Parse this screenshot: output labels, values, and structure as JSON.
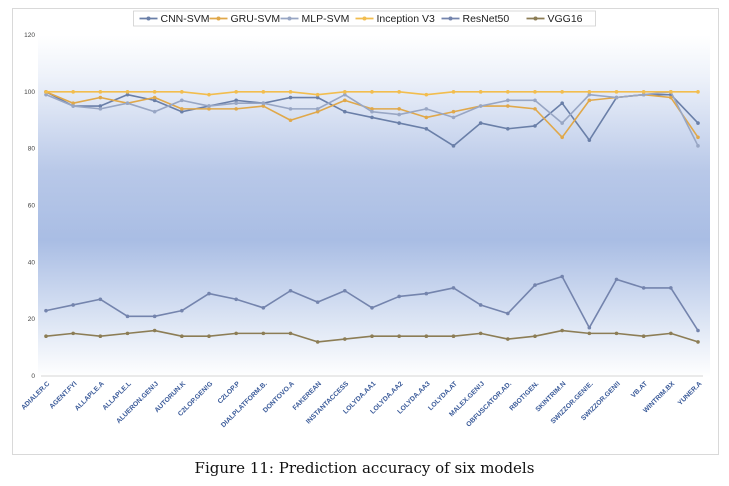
{
  "caption": "Figure 11: Prediction accuracy of six models",
  "chart_data": {
    "type": "line",
    "title": "",
    "xlabel": "",
    "ylabel": "",
    "ylim": [
      0,
      120
    ],
    "yticks": [
      0,
      20,
      40,
      60,
      80,
      100,
      120
    ],
    "grid": false,
    "legend_position": "top",
    "categories": [
      "ADIALER.C",
      "AGENT.FYI",
      "ALLAPLE.A",
      "ALLAPLE.L",
      "ALUERON.GEN!J",
      "AUTORUN.K",
      "C2LOP.GEN!G",
      "C2LOP.P",
      "DIALPLATFORM.B.",
      "DONTOVO.A",
      "FAKEREAN",
      "INSTANTACCESS",
      "LOLYDA.AA1",
      "LOLYDA.AA2",
      "LOLYDA.AA3",
      "LOLYDA.AT",
      "MALEX.GEN!J",
      "OBFUSCATOR.AD.",
      "RBOT!GEN.",
      "SKINTRIM.N",
      "SWIZZOR.GEN!E.",
      "SWIZZOR.GEN!I",
      "VB.AT",
      "WINTRIM.BX",
      "YUNER.A"
    ],
    "series": [
      {
        "name": "CNN-SVM",
        "color": "#6a7fa8",
        "values": [
          100,
          95,
          95,
          99,
          97,
          93,
          95,
          97,
          96,
          98,
          98,
          93,
          91,
          89,
          87,
          81,
          89,
          87,
          88,
          96,
          83,
          98,
          99,
          99,
          89
        ]
      },
      {
        "name": "GRU-SVM",
        "color": "#e0a84a",
        "values": [
          100,
          96,
          98,
          96,
          98,
          94,
          94,
          94,
          95,
          90,
          93,
          97,
          94,
          94,
          91,
          93,
          95,
          95,
          94,
          84,
          97,
          98,
          99,
          98,
          84
        ]
      },
      {
        "name": "MLP-SVM",
        "color": "#98a6c4",
        "values": [
          99,
          95,
          94,
          96,
          93,
          97,
          95,
          96,
          96,
          94,
          94,
          99,
          93,
          92,
          94,
          91,
          95,
          97,
          97,
          89,
          99,
          98,
          99,
          100,
          81
        ]
      },
      {
        "name": "Inception V3",
        "color": "#f2bd4e",
        "values": [
          100,
          100,
          100,
          100,
          100,
          100,
          99,
          100,
          100,
          100,
          99,
          100,
          100,
          100,
          99,
          100,
          100,
          100,
          100,
          100,
          100,
          100,
          100,
          100,
          100
        ]
      },
      {
        "name": "ResNet50",
        "color": "#7484ad",
        "values": [
          23,
          25,
          27,
          21,
          21,
          23,
          29,
          27,
          24,
          30,
          26,
          30,
          24,
          28,
          29,
          31,
          25,
          22,
          32,
          35,
          17,
          34,
          31,
          31,
          16
        ]
      },
      {
        "name": "VGG16",
        "color": "#8c7d55",
        "values": [
          14,
          15,
          14,
          15,
          16,
          14,
          14,
          15,
          15,
          15,
          12,
          13,
          14,
          14,
          14,
          14,
          15,
          13,
          14,
          16,
          15,
          15,
          14,
          15,
          12
        ]
      }
    ]
  }
}
